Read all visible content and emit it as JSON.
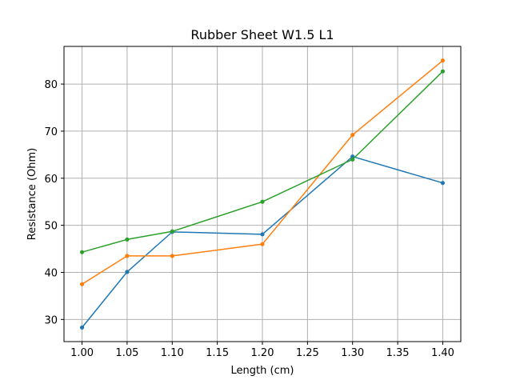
{
  "chart_data": {
    "type": "line",
    "title": "Rubber Sheet W1.5 L1",
    "xlabel": "Length (cm)",
    "ylabel": "Resistance (Ohm)",
    "xlim": [
      0.98,
      1.42
    ],
    "ylim": [
      25.3,
      88.0
    ],
    "xticks": [
      1.0,
      1.05,
      1.1,
      1.15,
      1.2,
      1.25,
      1.3,
      1.35,
      1.4
    ],
    "xtick_labels": [
      "1.00",
      "1.05",
      "1.10",
      "1.15",
      "1.20",
      "1.25",
      "1.30",
      "1.35",
      "1.40"
    ],
    "yticks": [
      30,
      40,
      50,
      60,
      70,
      80
    ],
    "ytick_labels": [
      "30",
      "40",
      "50",
      "60",
      "70",
      "80"
    ],
    "grid": true,
    "series": [
      {
        "color": "#1f77b4",
        "x": [
          1.0,
          1.05,
          1.1,
          1.2,
          1.3,
          1.4
        ],
        "y": [
          28.3,
          40.1,
          48.6,
          48.1,
          64.6,
          59.0
        ]
      },
      {
        "color": "#ff7f0e",
        "x": [
          1.0,
          1.05,
          1.1,
          1.2,
          1.3,
          1.4
        ],
        "y": [
          37.5,
          43.5,
          43.5,
          46.0,
          69.2,
          85.0
        ]
      },
      {
        "color": "#2ca02c",
        "x": [
          1.0,
          1.05,
          1.1,
          1.2,
          1.3,
          1.4
        ],
        "y": [
          44.3,
          47.0,
          48.7,
          55.0,
          64.0,
          82.7
        ]
      }
    ]
  }
}
